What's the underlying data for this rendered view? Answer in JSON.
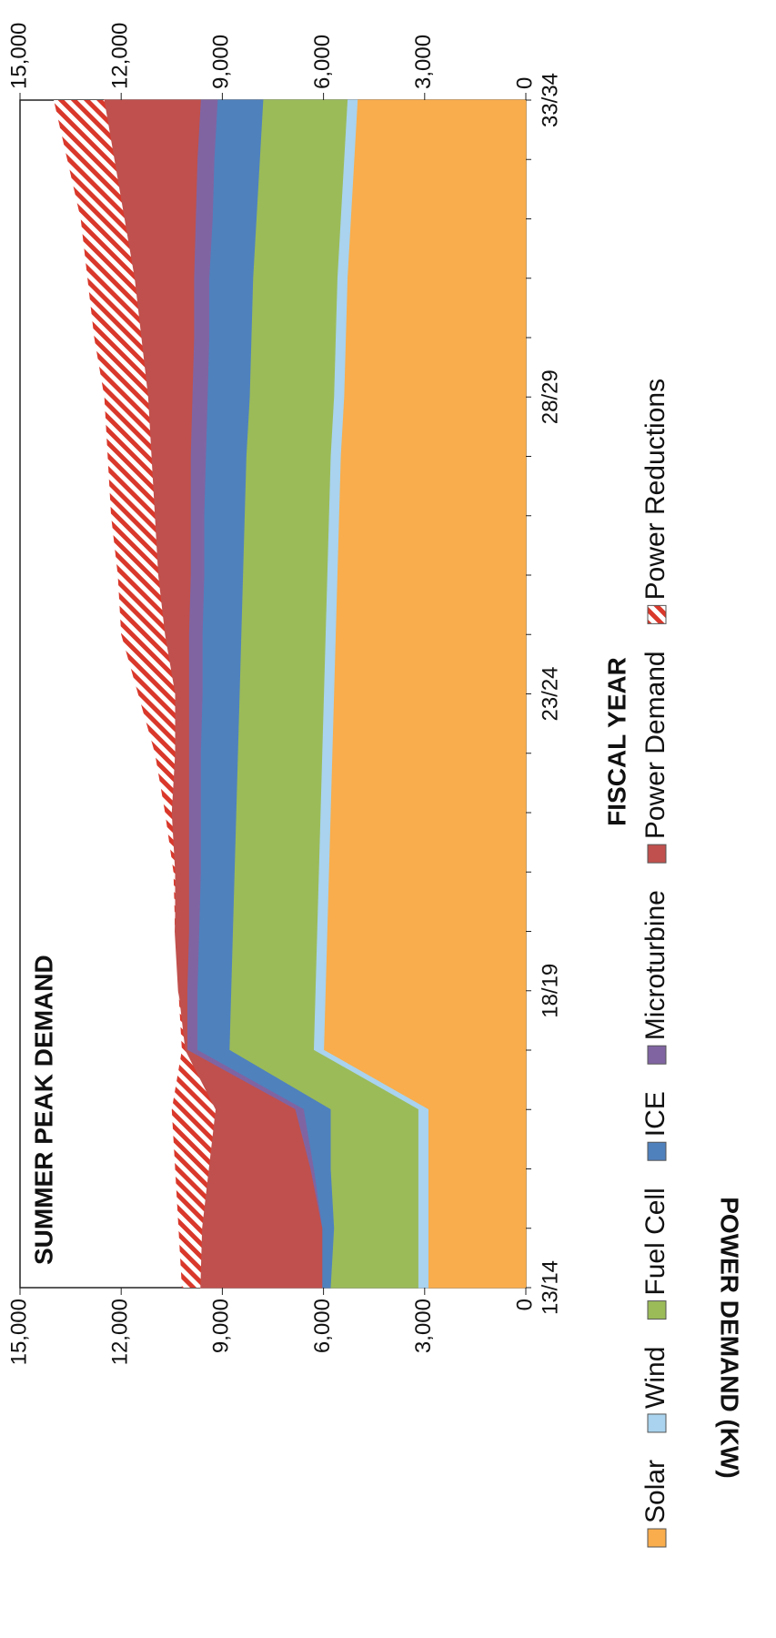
{
  "chart_data": {
    "type": "stacked-area",
    "title": "SUMMER PEAK DEMAND",
    "x_label": "FISCAL YEAR",
    "y_label": "POWER DEMAND (KW)",
    "categories": [
      "13/14",
      null,
      null,
      null,
      null,
      "18/19",
      null,
      null,
      null,
      null,
      "23/24",
      null,
      null,
      null,
      null,
      "28/29",
      null,
      null,
      null,
      null,
      "33/34"
    ],
    "series": [
      {
        "name": "Solar",
        "color": "#f9ad4c",
        "values": [
          2900,
          2900,
          2900,
          2900,
          6000,
          5950,
          5900,
          5850,
          5800,
          5750,
          5700,
          5650,
          5600,
          5550,
          5500,
          5400,
          5350,
          5300,
          5200,
          5100,
          5000
        ]
      },
      {
        "name": "Wind",
        "color": "#a9d3ee",
        "values": [
          300,
          300,
          300,
          300,
          300,
          300,
          300,
          300,
          300,
          300,
          300,
          300,
          300,
          300,
          300,
          300,
          300,
          300,
          300,
          300,
          300
        ]
      },
      {
        "name": "Fuel Cell",
        "color": "#9bbb59",
        "values": [
          2600,
          2500,
          2600,
          2600,
          2500,
          2500,
          2500,
          2500,
          2500,
          2500,
          2500,
          2500,
          2500,
          2500,
          2500,
          2500,
          2500,
          2500,
          2500,
          2500,
          2500
        ]
      },
      {
        "name": "ICE",
        "color": "#4f81bd",
        "values": [
          250,
          350,
          500,
          800,
          950,
          1000,
          1000,
          1000,
          1050,
          1100,
          1100,
          1150,
          1150,
          1200,
          1200,
          1250,
          1250,
          1300,
          1300,
          1350,
          1350
        ]
      },
      {
        "name": "Microturbine",
        "color": "#8064a2",
        "values": [
          0,
          0,
          100,
          250,
          300,
          300,
          300,
          350,
          350,
          350,
          400,
          400,
          400,
          400,
          450,
          450,
          450,
          450,
          500,
          500,
          500
        ]
      },
      {
        "name": "Power Demand",
        "color": "#c0504d",
        "values": [
          3600,
          3550,
          3000,
          2350,
          50,
          250,
          400,
          400,
          500,
          400,
          400,
          700,
          950,
          1050,
          1150,
          1300,
          1550,
          1750,
          2100,
          2450,
          2850
        ]
      },
      {
        "name": "Power Reductions",
        "color": "#d9382b",
        "pattern": "hatch",
        "values": [
          550,
          700,
          1000,
          1300,
          100,
          0,
          0,
          50,
          200,
          600,
          1100,
          1300,
          1200,
          1300,
          1300,
          1300,
          1400,
          1400,
          1300,
          1400,
          1500
        ]
      }
    ],
    "ylim": [
      0,
      15000
    ],
    "yticks": [
      0,
      {
        "value": 3000,
        "label": "3,000"
      },
      {
        "value": 6000,
        "label": "6,000"
      },
      {
        "value": 9000,
        "label": "9,000"
      },
      {
        "value": 12000,
        "label": "12,000"
      },
      {
        "value": 15000,
        "label": "15,000"
      }
    ],
    "y2lim": [
      0,
      15000
    ],
    "y2ticks": [
      0,
      {
        "value": 3000,
        "label": "3,000"
      },
      {
        "value": 6000,
        "label": "6,000"
      },
      {
        "value": 9000,
        "label": "9,000"
      },
      {
        "value": 12000,
        "label": "12,000"
      },
      {
        "value": 15000,
        "label": "15,000"
      }
    ],
    "legend": "bottom"
  }
}
